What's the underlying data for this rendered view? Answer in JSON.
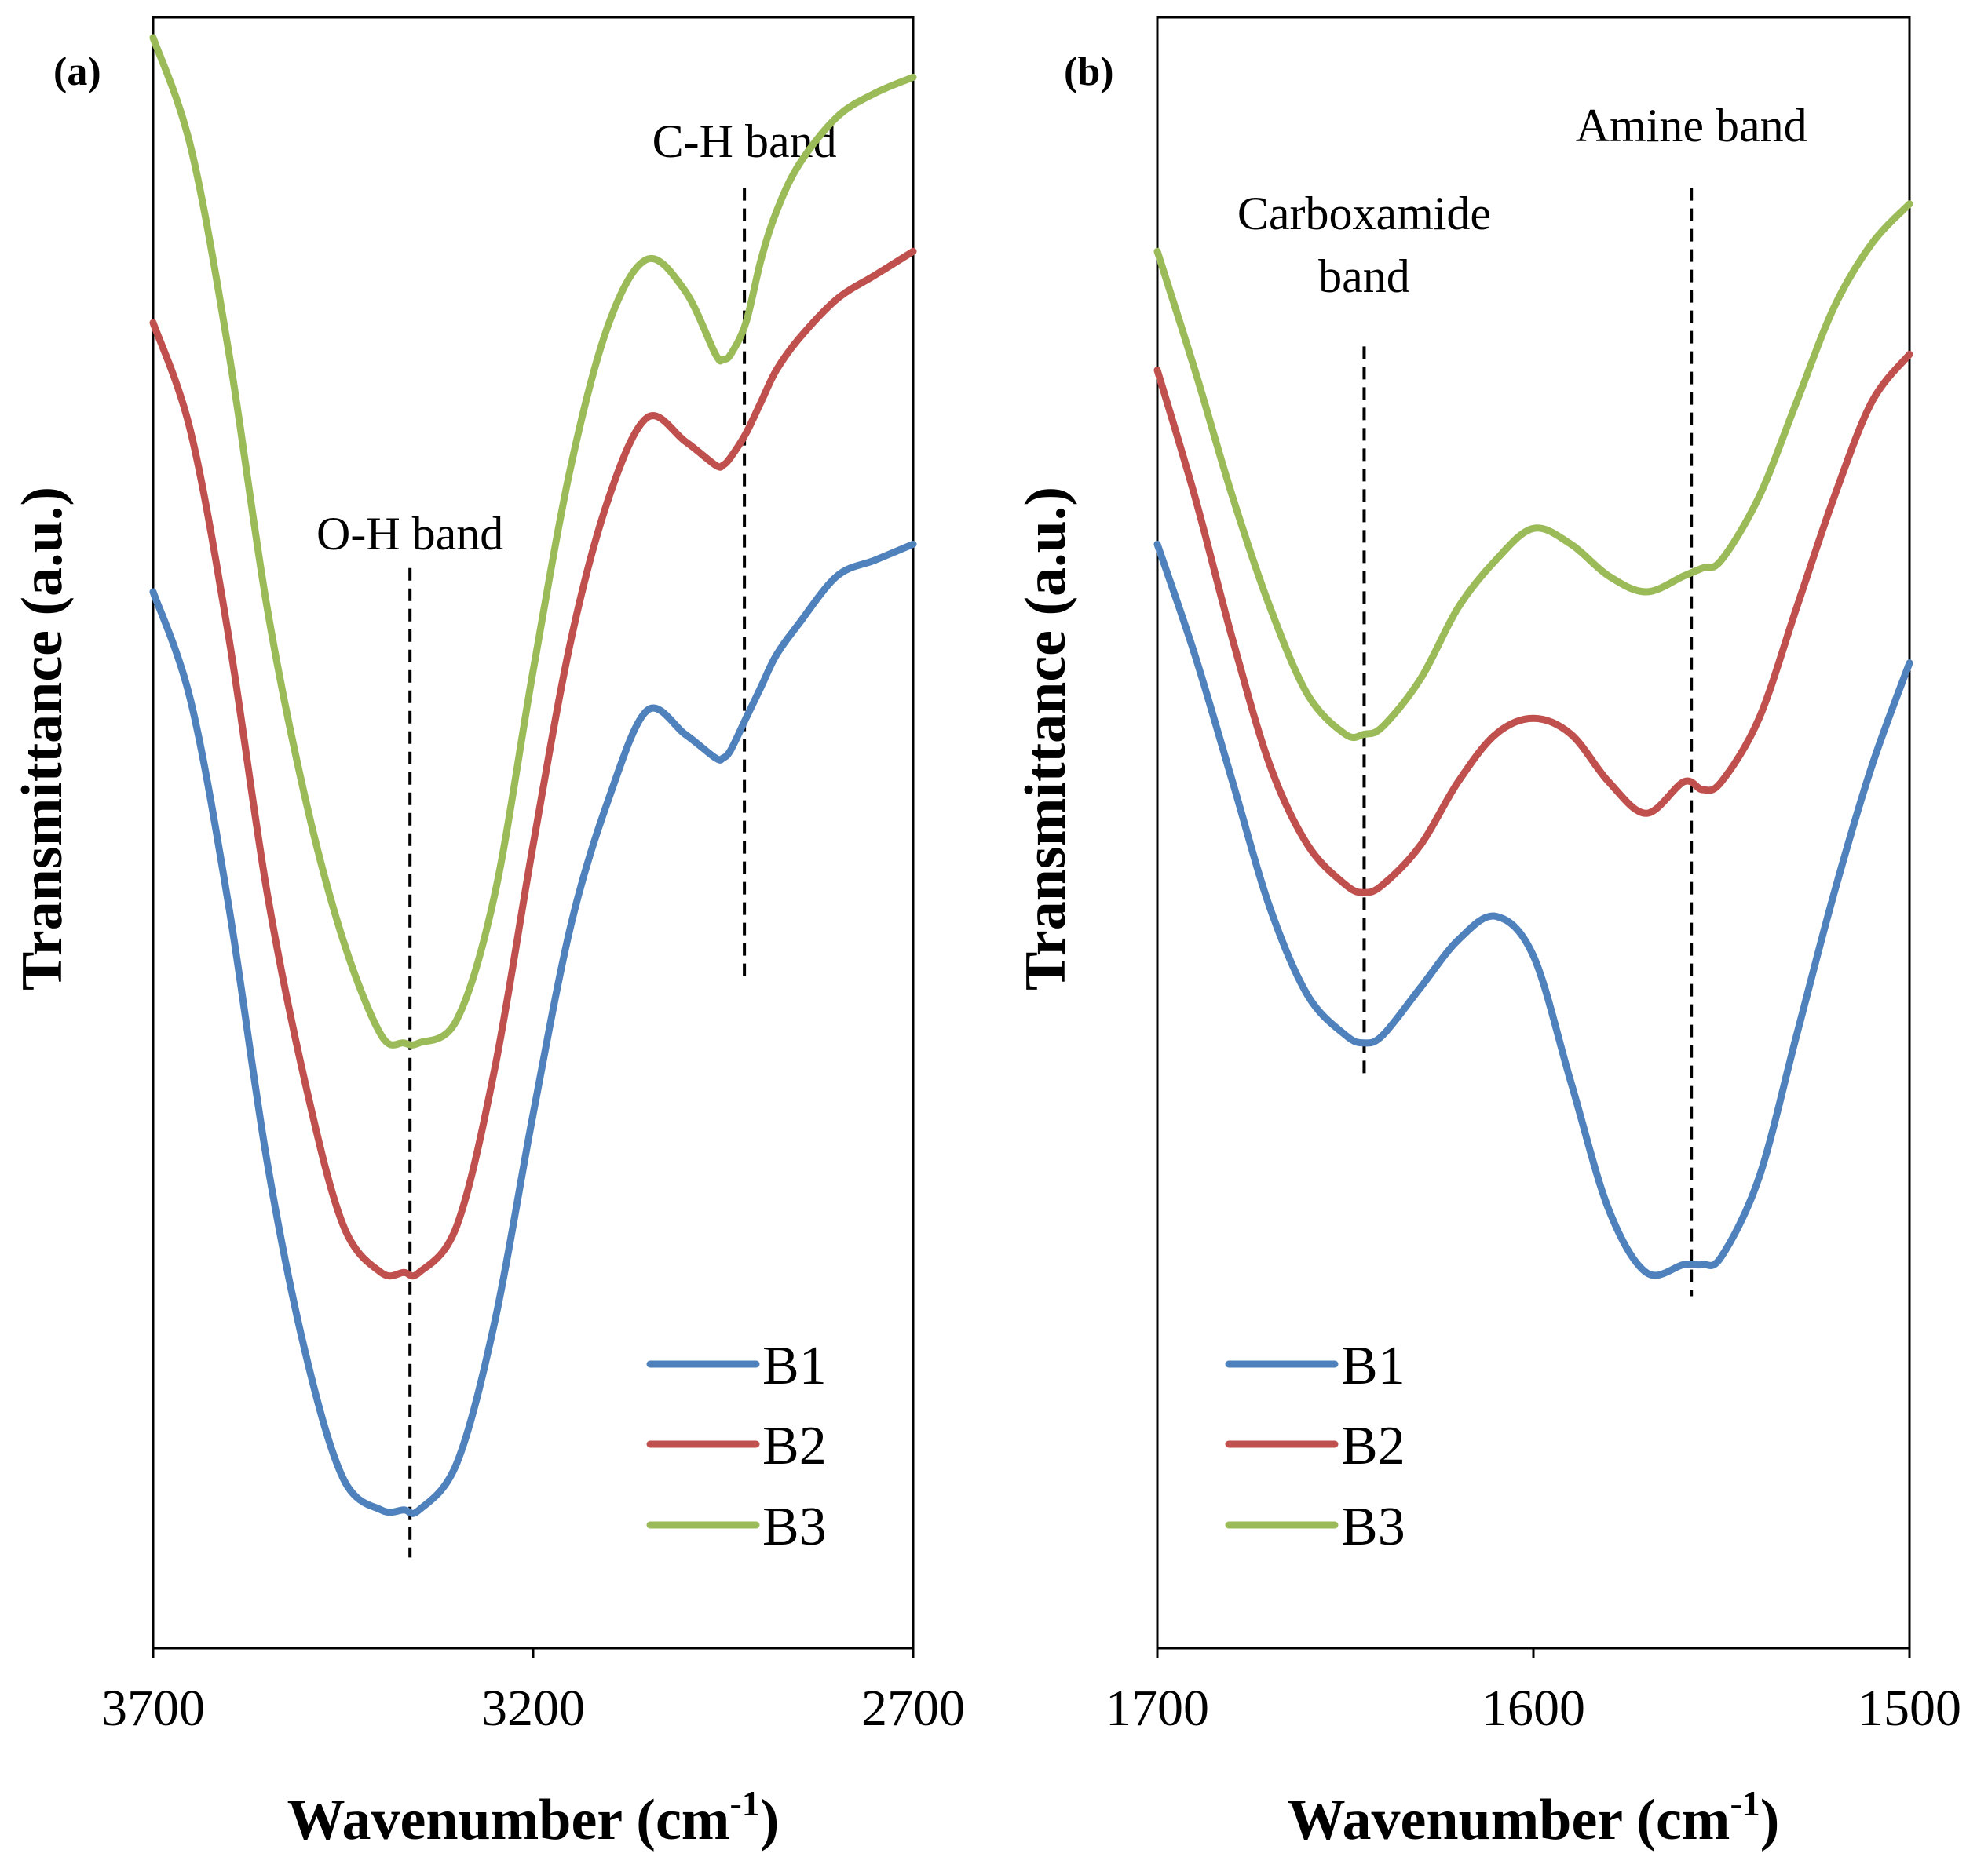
{
  "chart_data": [
    {
      "panel_label": "(a)",
      "type": "line",
      "xlabel": "Wavenumber (cm",
      "xlabel_sup": "-1",
      "xlabel_end": ")",
      "ylabel": "Transmittance (a.u.)",
      "xlim": [
        3700,
        2700
      ],
      "ylim": [
        0,
        1
      ],
      "xticks": [
        "3700",
        "3200",
        "2700"
      ],
      "legend_position": "bottom-right",
      "annotations": [
        {
          "text": [
            "O-H band"
          ],
          "x": 3362,
          "line_top": 0.665,
          "line_bottom": 0.04
        },
        {
          "text": [
            "C-H band"
          ],
          "x": 2922,
          "line_top": 0.905,
          "line_bottom": 0.405
        }
      ],
      "series": [
        {
          "name": "B1",
          "color": "#4f81bd",
          "x": [
            3700,
            3650,
            3600,
            3550,
            3500,
            3450,
            3400,
            3370,
            3350,
            3300,
            3250,
            3200,
            3150,
            3100,
            3050,
            3000,
            2960,
            2950,
            2940,
            2920,
            2900,
            2880,
            2850,
            2800,
            2750,
            2700
          ],
          "y": [
            0.65,
            0.58,
            0.45,
            0.29,
            0.17,
            0.09,
            0.07,
            0.07,
            0.07,
            0.1,
            0.19,
            0.32,
            0.44,
            0.52,
            0.575,
            0.56,
            0.545,
            0.545,
            0.55,
            0.57,
            0.59,
            0.61,
            0.63,
            0.66,
            0.67,
            0.68
          ]
        },
        {
          "name": "B2",
          "color": "#c0504d",
          "x": [
            3700,
            3650,
            3600,
            3550,
            3500,
            3450,
            3400,
            3370,
            3350,
            3300,
            3250,
            3200,
            3150,
            3100,
            3050,
            3000,
            2960,
            2950,
            2940,
            2920,
            2900,
            2880,
            2850,
            2800,
            2750,
            2700
          ],
          "y": [
            0.82,
            0.75,
            0.62,
            0.46,
            0.34,
            0.25,
            0.22,
            0.22,
            0.22,
            0.25,
            0.35,
            0.49,
            0.62,
            0.71,
            0.76,
            0.745,
            0.73,
            0.73,
            0.735,
            0.75,
            0.77,
            0.79,
            0.81,
            0.835,
            0.85,
            0.865
          ]
        },
        {
          "name": "B3",
          "color": "#9bbb59",
          "x": [
            3700,
            3650,
            3600,
            3550,
            3500,
            3450,
            3400,
            3370,
            3350,
            3300,
            3250,
            3200,
            3150,
            3100,
            3050,
            3000,
            2960,
            2950,
            2940,
            2920,
            2900,
            2880,
            2850,
            2800,
            2750,
            2700
          ],
          "y": [
            1.0,
            0.93,
            0.8,
            0.64,
            0.52,
            0.43,
            0.37,
            0.365,
            0.365,
            0.38,
            0.46,
            0.6,
            0.73,
            0.82,
            0.86,
            0.84,
            0.8,
            0.797,
            0.8,
            0.82,
            0.86,
            0.89,
            0.92,
            0.95,
            0.965,
            0.975
          ]
        }
      ]
    },
    {
      "panel_label": "(b)",
      "type": "line",
      "xlabel": "Wavenumber (cm",
      "xlabel_sup": "-1",
      "xlabel_end": ")",
      "ylabel": "Transmittance (a.u.)",
      "xlim": [
        1700,
        1500
      ],
      "ylim": [
        0,
        1
      ],
      "xticks": [
        "1700",
        "1600",
        "1500"
      ],
      "legend_position": "bottom-left",
      "annotations": [
        {
          "text": [
            "Carboxamide",
            "band"
          ],
          "x": 1645,
          "line_top": 0.805,
          "line_bottom": 0.345
        },
        {
          "text": [
            "Amine band"
          ],
          "x": 1558,
          "line_top": 0.905,
          "line_bottom": 0.205
        }
      ],
      "series": [
        {
          "name": "B1",
          "color": "#4f81bd",
          "x": [
            1700,
            1690,
            1680,
            1670,
            1660,
            1650,
            1645,
            1640,
            1630,
            1620,
            1610,
            1600,
            1590,
            1580,
            1570,
            1560,
            1555,
            1550,
            1540,
            1530,
            1520,
            1510,
            1500
          ],
          "y": [
            0.68,
            0.61,
            0.53,
            0.45,
            0.395,
            0.37,
            0.365,
            0.37,
            0.4,
            0.43,
            0.445,
            0.42,
            0.34,
            0.26,
            0.22,
            0.225,
            0.225,
            0.23,
            0.28,
            0.37,
            0.46,
            0.54,
            0.605
          ]
        },
        {
          "name": "B2",
          "color": "#c0504d",
          "x": [
            1700,
            1690,
            1680,
            1670,
            1660,
            1650,
            1645,
            1640,
            1630,
            1620,
            1610,
            1600,
            1590,
            1580,
            1570,
            1560,
            1555,
            1550,
            1540,
            1530,
            1520,
            1510,
            1500
          ],
          "y": [
            0.79,
            0.71,
            0.62,
            0.54,
            0.49,
            0.465,
            0.46,
            0.465,
            0.49,
            0.53,
            0.56,
            0.57,
            0.56,
            0.53,
            0.51,
            0.53,
            0.525,
            0.53,
            0.57,
            0.64,
            0.71,
            0.77,
            0.8
          ]
        },
        {
          "name": "B3",
          "color": "#9bbb59",
          "x": [
            1700,
            1690,
            1680,
            1670,
            1660,
            1650,
            1645,
            1640,
            1630,
            1620,
            1610,
            1600,
            1590,
            1580,
            1570,
            1560,
            1555,
            1550,
            1540,
            1530,
            1520,
            1510,
            1500
          ],
          "y": [
            0.865,
            0.79,
            0.71,
            0.64,
            0.585,
            0.56,
            0.56,
            0.565,
            0.595,
            0.64,
            0.67,
            0.69,
            0.68,
            0.66,
            0.65,
            0.66,
            0.665,
            0.67,
            0.71,
            0.77,
            0.83,
            0.87,
            0.895
          ]
        }
      ]
    }
  ]
}
